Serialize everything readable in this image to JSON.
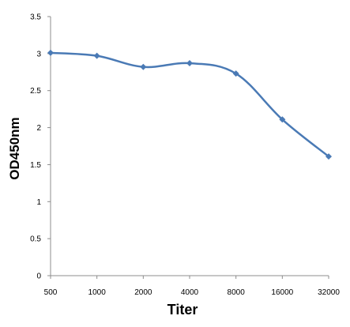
{
  "chart_data": {
    "type": "line",
    "title": "",
    "xlabel": "Titer",
    "ylabel": "OD450nm",
    "categories": [
      "500",
      "1000",
      "2000",
      "4000",
      "8000",
      "16000",
      "32000"
    ],
    "series": [
      {
        "values": [
          3.01,
          2.97,
          2.82,
          2.87,
          2.73,
          2.11,
          1.61
        ],
        "color": "#4a7ab5",
        "marker": "diamond",
        "smooth": true
      }
    ],
    "ylim": [
      0,
      3.5
    ],
    "yticks": [
      "0",
      "0.5",
      "1",
      "1.5",
      "2",
      "2.5",
      "3",
      "3.5"
    ],
    "grid": false,
    "legend": "none"
  }
}
